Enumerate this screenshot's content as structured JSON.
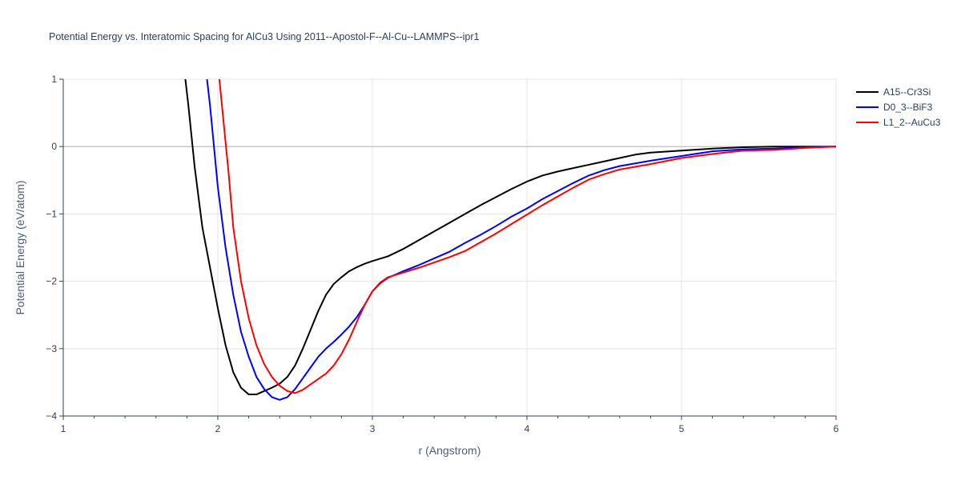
{
  "chart_data": {
    "type": "line",
    "title": "Potential Energy vs. Interatomic Spacing for AlCu3 Using 2011--Apostol-F--Al-Cu--LAMMPS--ipr1",
    "xlabel": "r (Angstrom)",
    "ylabel": "Potential Energy (eV/atom)",
    "xlim": [
      1,
      6
    ],
    "ylim": [
      -4,
      1
    ],
    "x_ticks": [
      1,
      2,
      3,
      4,
      5,
      6
    ],
    "y_ticks": [
      1,
      0,
      -1,
      -2,
      -3,
      -4
    ],
    "x_tick_labels": [
      "1",
      "2",
      "3",
      "4",
      "5",
      "6"
    ],
    "y_tick_labels": [
      "1",
      "0",
      "−1",
      "−2",
      "−3",
      "−4"
    ],
    "grid": true,
    "legend_position": "top-right",
    "series": [
      {
        "name": "A15--Cr3Si",
        "color": "#000000",
        "points": [
          [
            1.79,
            1.0
          ],
          [
            1.81,
            0.6
          ],
          [
            1.85,
            -0.3
          ],
          [
            1.9,
            -1.2
          ],
          [
            1.95,
            -1.8
          ],
          [
            2.0,
            -2.4
          ],
          [
            2.05,
            -2.95
          ],
          [
            2.1,
            -3.35
          ],
          [
            2.15,
            -3.58
          ],
          [
            2.2,
            -3.68
          ],
          [
            2.25,
            -3.68
          ],
          [
            2.3,
            -3.63
          ],
          [
            2.35,
            -3.58
          ],
          [
            2.4,
            -3.52
          ],
          [
            2.45,
            -3.42
          ],
          [
            2.5,
            -3.25
          ],
          [
            2.55,
            -3.0
          ],
          [
            2.6,
            -2.72
          ],
          [
            2.65,
            -2.44
          ],
          [
            2.7,
            -2.2
          ],
          [
            2.75,
            -2.04
          ],
          [
            2.8,
            -1.94
          ],
          [
            2.85,
            -1.85
          ],
          [
            2.9,
            -1.79
          ],
          [
            2.95,
            -1.74
          ],
          [
            3.0,
            -1.7
          ],
          [
            3.1,
            -1.63
          ],
          [
            3.2,
            -1.52
          ],
          [
            3.3,
            -1.39
          ],
          [
            3.4,
            -1.26
          ],
          [
            3.5,
            -1.13
          ],
          [
            3.6,
            -1.0
          ],
          [
            3.7,
            -0.87
          ],
          [
            3.8,
            -0.75
          ],
          [
            3.9,
            -0.63
          ],
          [
            4.0,
            -0.52
          ],
          [
            4.1,
            -0.43
          ],
          [
            4.2,
            -0.37
          ],
          [
            4.3,
            -0.32
          ],
          [
            4.4,
            -0.27
          ],
          [
            4.5,
            -0.22
          ],
          [
            4.6,
            -0.17
          ],
          [
            4.7,
            -0.12
          ],
          [
            4.8,
            -0.09
          ],
          [
            5.0,
            -0.06
          ],
          [
            5.2,
            -0.03
          ],
          [
            5.4,
            -0.01
          ],
          [
            5.6,
            0.0
          ],
          [
            6.0,
            0.0
          ]
        ]
      },
      {
        "name": "D0_3--BiF3",
        "color": "#0000ff",
        "points": [
          [
            1.93,
            1.0
          ],
          [
            1.95,
            0.6
          ],
          [
            2.0,
            -0.6
          ],
          [
            2.05,
            -1.5
          ],
          [
            2.1,
            -2.2
          ],
          [
            2.15,
            -2.75
          ],
          [
            2.2,
            -3.12
          ],
          [
            2.25,
            -3.42
          ],
          [
            2.3,
            -3.6
          ],
          [
            2.35,
            -3.72
          ],
          [
            2.4,
            -3.76
          ],
          [
            2.45,
            -3.72
          ],
          [
            2.5,
            -3.6
          ],
          [
            2.55,
            -3.44
          ],
          [
            2.6,
            -3.28
          ],
          [
            2.65,
            -3.12
          ],
          [
            2.7,
            -3.0
          ],
          [
            2.75,
            -2.9
          ],
          [
            2.8,
            -2.79
          ],
          [
            2.85,
            -2.67
          ],
          [
            2.9,
            -2.53
          ],
          [
            2.95,
            -2.35
          ],
          [
            3.0,
            -2.15
          ],
          [
            3.05,
            -2.03
          ],
          [
            3.1,
            -1.95
          ],
          [
            3.2,
            -1.85
          ],
          [
            3.3,
            -1.76
          ],
          [
            3.4,
            -1.66
          ],
          [
            3.5,
            -1.56
          ],
          [
            3.6,
            -1.43
          ],
          [
            3.7,
            -1.31
          ],
          [
            3.8,
            -1.18
          ],
          [
            3.9,
            -1.04
          ],
          [
            4.0,
            -0.92
          ],
          [
            4.1,
            -0.78
          ],
          [
            4.2,
            -0.66
          ],
          [
            4.3,
            -0.54
          ],
          [
            4.4,
            -0.43
          ],
          [
            4.5,
            -0.35
          ],
          [
            4.6,
            -0.29
          ],
          [
            4.8,
            -0.21
          ],
          [
            5.0,
            -0.14
          ],
          [
            5.2,
            -0.07
          ],
          [
            5.4,
            -0.04
          ],
          [
            5.6,
            -0.03
          ],
          [
            5.8,
            -0.01
          ],
          [
            6.0,
            0.0
          ]
        ]
      },
      {
        "name": "L1_2--AuCu3",
        "color": "#ff0000",
        "points": [
          [
            2.01,
            1.0
          ],
          [
            2.04,
            0.3
          ],
          [
            2.07,
            -0.4
          ],
          [
            2.1,
            -1.2
          ],
          [
            2.15,
            -2.0
          ],
          [
            2.2,
            -2.55
          ],
          [
            2.25,
            -2.95
          ],
          [
            2.3,
            -3.23
          ],
          [
            2.35,
            -3.42
          ],
          [
            2.4,
            -3.55
          ],
          [
            2.45,
            -3.63
          ],
          [
            2.5,
            -3.66
          ],
          [
            2.55,
            -3.61
          ],
          [
            2.6,
            -3.53
          ],
          [
            2.65,
            -3.45
          ],
          [
            2.7,
            -3.37
          ],
          [
            2.75,
            -3.25
          ],
          [
            2.8,
            -3.08
          ],
          [
            2.85,
            -2.86
          ],
          [
            2.9,
            -2.6
          ],
          [
            2.95,
            -2.35
          ],
          [
            3.0,
            -2.15
          ],
          [
            3.05,
            -2.02
          ],
          [
            3.1,
            -1.94
          ],
          [
            3.2,
            -1.87
          ],
          [
            3.3,
            -1.8
          ],
          [
            3.4,
            -1.72
          ],
          [
            3.5,
            -1.64
          ],
          [
            3.6,
            -1.55
          ],
          [
            3.7,
            -1.42
          ],
          [
            3.8,
            -1.29
          ],
          [
            3.9,
            -1.15
          ],
          [
            4.0,
            -1.01
          ],
          [
            4.1,
            -0.87
          ],
          [
            4.2,
            -0.74
          ],
          [
            4.3,
            -0.61
          ],
          [
            4.4,
            -0.49
          ],
          [
            4.5,
            -0.41
          ],
          [
            4.6,
            -0.34
          ],
          [
            4.8,
            -0.26
          ],
          [
            5.0,
            -0.17
          ],
          [
            5.2,
            -0.11
          ],
          [
            5.4,
            -0.06
          ],
          [
            5.6,
            -0.05
          ],
          [
            5.8,
            -0.02
          ],
          [
            6.0,
            0.0
          ]
        ]
      }
    ]
  }
}
